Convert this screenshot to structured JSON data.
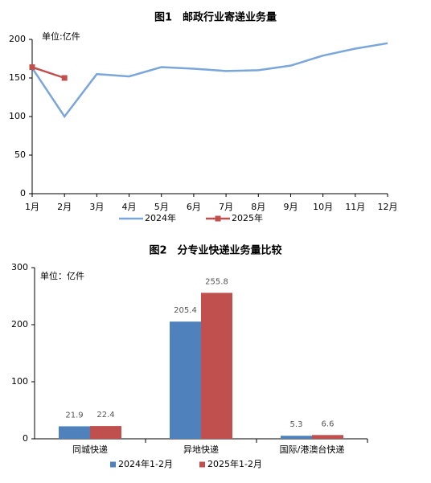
{
  "chart_data": [
    {
      "type": "line",
      "title": "图1　邮政行业寄递业务量",
      "unit_label": "单位:亿件",
      "categories": [
        "1月",
        "2月",
        "3月",
        "4月",
        "5月",
        "6月",
        "7月",
        "8月",
        "9月",
        "10月",
        "11月",
        "12月"
      ],
      "series": [
        {
          "name": "2024年",
          "color": "#7aa6dc",
          "values": [
            163,
            100,
            155,
            152,
            164,
            162,
            159,
            160,
            166,
            179,
            188,
            195
          ]
        },
        {
          "name": "2025年",
          "color": "#c0504d",
          "values": [
            164,
            150,
            null,
            null,
            null,
            null,
            null,
            null,
            null,
            null,
            null,
            null
          ]
        }
      ],
      "ylim": [
        0,
        200
      ],
      "yticks": [
        0,
        50,
        100,
        150,
        200
      ],
      "grid": false
    },
    {
      "type": "bar",
      "title": "图2　分专业快递业务量比较",
      "unit_label": "单位：亿件",
      "categories": [
        "同城快递",
        "异地快递",
        "国际/港澳台快递"
      ],
      "series": [
        {
          "name": "2024年1-2月",
          "color": "#4f81bd",
          "values": [
            21.9,
            205.4,
            5.3
          ]
        },
        {
          "name": "2025年1-2月",
          "color": "#c0504d",
          "values": [
            22.4,
            255.8,
            6.6
          ]
        }
      ],
      "ylim": [
        0,
        300
      ],
      "yticks": [
        0,
        100,
        200,
        300
      ],
      "grid": false
    }
  ]
}
